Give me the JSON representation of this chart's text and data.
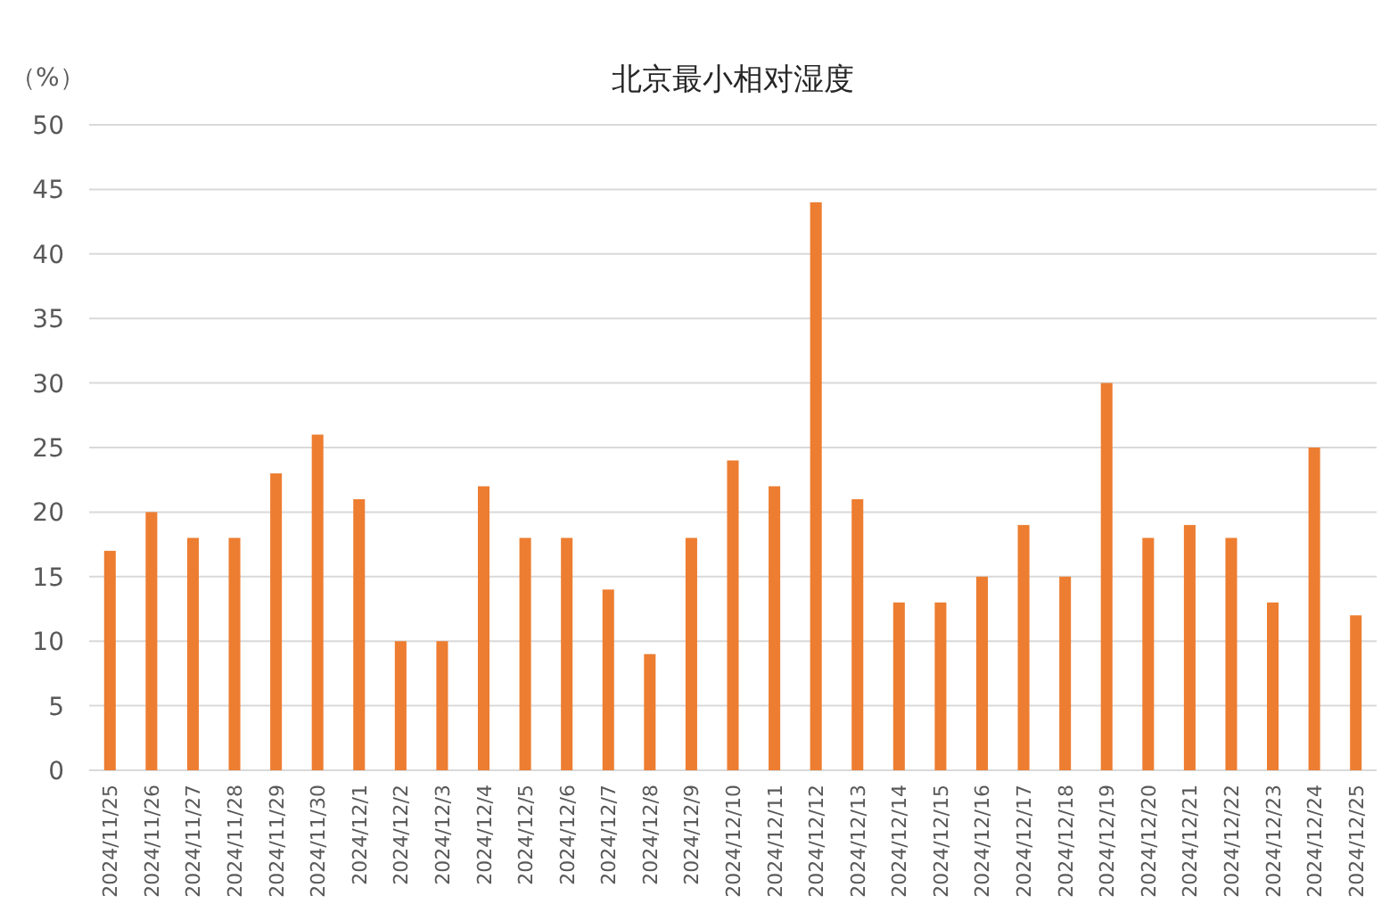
{
  "chart_data": {
    "type": "bar",
    "title": "北京最小相对湿度",
    "ylabel": "（%）",
    "categories": [
      "2024/11/25",
      "2024/11/26",
      "2024/11/27",
      "2024/11/28",
      "2024/11/29",
      "2024/11/30",
      "2024/12/1",
      "2024/12/2",
      "2024/12/3",
      "2024/12/4",
      "2024/12/5",
      "2024/12/6",
      "2024/12/7",
      "2024/12/8",
      "2024/12/9",
      "2024/12/10",
      "2024/12/11",
      "2024/12/12",
      "2024/12/13",
      "2024/12/14",
      "2024/12/15",
      "2024/12/16",
      "2024/12/17",
      "2024/12/18",
      "2024/12/19",
      "2024/12/20",
      "2024/12/21",
      "2024/12/22",
      "2024/12/23",
      "2024/12/24",
      "2024/12/25"
    ],
    "values": [
      17,
      20,
      18,
      18,
      23,
      26,
      21,
      10,
      10,
      22,
      18,
      18,
      14,
      9,
      18,
      24,
      22,
      44,
      21,
      13,
      13,
      15,
      19,
      15,
      30,
      18,
      19,
      18,
      13,
      25,
      12
    ],
    "color": "#ed7d31",
    "ylim": [
      0,
      50
    ],
    "yticks": [
      0,
      5,
      10,
      15,
      20,
      25,
      30,
      35,
      40,
      45,
      50
    ],
    "grid": "y"
  }
}
